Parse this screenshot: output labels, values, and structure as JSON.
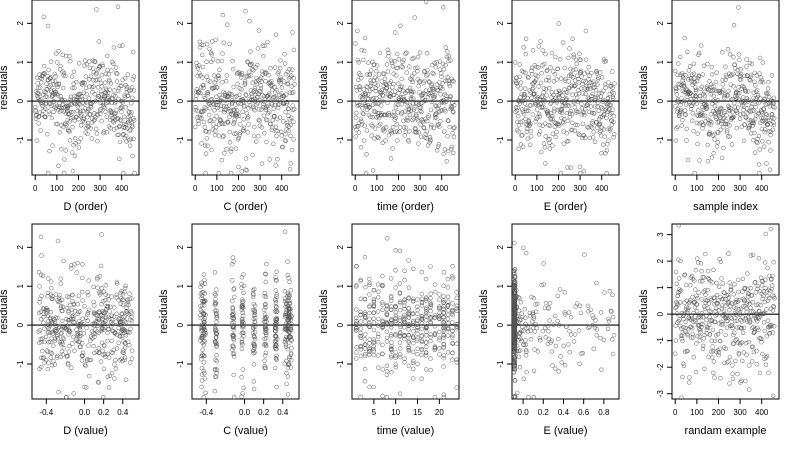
{
  "figure": {
    "rows": 2,
    "cols": 5
  },
  "chart_data": [
    {
      "type": "scatter",
      "title": "",
      "xlabel": "D (order)",
      "ylabel": "residuals",
      "xticks": [
        0,
        100,
        200,
        300,
        400
      ],
      "xtick_labels": [
        "0",
        "100",
        "200",
        "300",
        "400"
      ],
      "yticks": [
        -1,
        0,
        1,
        2
      ],
      "ytick_labels": [
        "-1",
        "0",
        "1",
        "2"
      ],
      "xlim": [
        -15,
        480
      ],
      "ylim": [
        -1.9,
        2.6
      ],
      "hline": 0,
      "series": [
        {
          "name": "",
          "x": [],
          "y": []
        }
      ],
      "marker": "open-circle",
      "point_color": "#555555",
      "gen": {
        "kind": "index",
        "n": 460,
        "seed": 11,
        "wave": 0.25,
        "spread": 0.55
      }
    },
    {
      "type": "scatter",
      "title": "",
      "xlabel": "C (order)",
      "ylabel": "residuals",
      "xticks": [
        0,
        100,
        200,
        300,
        400
      ],
      "xtick_labels": [
        "0",
        "100",
        "200",
        "300",
        "400"
      ],
      "yticks": [
        -1,
        0,
        1,
        2
      ],
      "ytick_labels": [
        "-1",
        "0",
        "1",
        "2"
      ],
      "xlim": [
        -15,
        480
      ],
      "ylim": [
        -1.9,
        2.6
      ],
      "hline": 0,
      "series": [
        {
          "name": "",
          "x": [],
          "y": []
        }
      ],
      "marker": "open-circle",
      "point_color": "#555555",
      "gen": {
        "kind": "index",
        "n": 460,
        "seed": 23,
        "wave": 0.1,
        "spread": 0.6
      }
    },
    {
      "type": "scatter",
      "title": "",
      "xlabel": "time (order)",
      "ylabel": "residuals",
      "xticks": [
        0,
        100,
        200,
        300,
        400
      ],
      "xtick_labels": [
        "0",
        "100",
        "200",
        "300",
        "400"
      ],
      "yticks": [
        -1,
        0,
        1,
        2
      ],
      "ytick_labels": [
        "-1",
        "0",
        "1",
        "2"
      ],
      "xlim": [
        -15,
        480
      ],
      "ylim": [
        -1.9,
        2.6
      ],
      "hline": 0,
      "series": [
        {
          "name": "",
          "x": [],
          "y": []
        }
      ],
      "marker": "open-circle",
      "point_color": "#555555",
      "gen": {
        "kind": "index",
        "n": 460,
        "seed": 37,
        "wave": 0.05,
        "spread": 0.6
      }
    },
    {
      "type": "scatter",
      "title": "",
      "xlabel": "E (order)",
      "ylabel": "residuals",
      "xticks": [
        0,
        100,
        200,
        300,
        400
      ],
      "xtick_labels": [
        "0",
        "100",
        "200",
        "300",
        "400"
      ],
      "yticks": [
        -1,
        0,
        1,
        2
      ],
      "ytick_labels": [
        "-1",
        "0",
        "1",
        "2"
      ],
      "xlim": [
        -15,
        480
      ],
      "ylim": [
        -1.9,
        2.6
      ],
      "hline": 0,
      "series": [
        {
          "name": "",
          "x": [],
          "y": []
        }
      ],
      "marker": "open-circle",
      "point_color": "#555555",
      "gen": {
        "kind": "index",
        "n": 460,
        "seed": 41,
        "wave": 0.15,
        "spread": 0.6
      }
    },
    {
      "type": "scatter",
      "title": "",
      "xlabel": "sample index",
      "ylabel": "residuals",
      "xticks": [
        0,
        100,
        200,
        300,
        400
      ],
      "xtick_labels": [
        "0",
        "100",
        "200",
        "300",
        "400"
      ],
      "yticks": [
        -1,
        0,
        1,
        2
      ],
      "ytick_labels": [
        "-1",
        "0",
        "1",
        "2"
      ],
      "xlim": [
        -15,
        480
      ],
      "ylim": [
        -1.9,
        2.6
      ],
      "hline": 0,
      "series": [
        {
          "name": "",
          "x": [],
          "y": []
        }
      ],
      "marker": "open-circle",
      "point_color": "#555555",
      "gen": {
        "kind": "index",
        "n": 460,
        "seed": 53,
        "wave": 0.2,
        "spread": 0.55
      }
    },
    {
      "type": "scatter",
      "title": "",
      "xlabel": "D (value)",
      "ylabel": "residuals",
      "xticks": [
        -0.4,
        0.0,
        0.2,
        0.4
      ],
      "xtick_labels": [
        "-0.4",
        "0.0",
        "0.2",
        "0.4"
      ],
      "yticks": [
        -1,
        0,
        1,
        2
      ],
      "ytick_labels": [
        "-1",
        "0",
        "1",
        "2"
      ],
      "xlim": [
        -0.55,
        0.57
      ],
      "ylim": [
        -1.9,
        2.6
      ],
      "hline": 0,
      "series": [
        {
          "name": "",
          "x": [],
          "y": []
        }
      ],
      "marker": "open-circle",
      "point_color": "#555555",
      "gen": {
        "kind": "uniform",
        "n": 460,
        "seed": 61,
        "xmin": -0.48,
        "xmax": 0.5,
        "spread": 0.6
      }
    },
    {
      "type": "scatter",
      "title": "",
      "xlabel": "C (value)",
      "ylabel": "residuals",
      "xticks": [
        -0.4,
        0.0,
        0.2,
        0.4
      ],
      "xtick_labels": [
        "-0.4",
        "0.0",
        "0.2",
        "0.4"
      ],
      "yticks": [
        -1,
        0,
        1,
        2
      ],
      "ytick_labels": [
        "-1",
        "0",
        "1",
        "2"
      ],
      "xlim": [
        -0.55,
        0.57
      ],
      "ylim": [
        -1.9,
        2.6
      ],
      "hline": 0,
      "series": [
        {
          "name": "",
          "x": [],
          "y": []
        }
      ],
      "marker": "open-circle",
      "point_color": "#555555",
      "gen": {
        "kind": "columns",
        "n": 460,
        "seed": 71,
        "xs": [
          -0.45,
          -0.42,
          -0.3,
          -0.12,
          -0.02,
          0.1,
          0.22,
          0.33,
          0.43,
          0.46,
          0.48
        ],
        "jitter": 0.012,
        "spread": 0.6
      }
    },
    {
      "type": "scatter",
      "title": "",
      "xlabel": "time (value)",
      "ylabel": "residuals",
      "xticks": [
        5,
        10,
        15,
        20
      ],
      "xtick_labels": [
        "5",
        "10",
        "15",
        "20"
      ],
      "yticks": [
        -1,
        0,
        1,
        2
      ],
      "ytick_labels": [
        "-1",
        "0",
        "1",
        "2"
      ],
      "xlim": [
        0,
        24.5
      ],
      "ylim": [
        -1.9,
        2.6
      ],
      "hline": 0,
      "series": [
        {
          "name": "",
          "x": [],
          "y": []
        }
      ],
      "marker": "open-circle",
      "point_color": "#555555",
      "gen": {
        "kind": "columns",
        "n": 460,
        "seed": 83,
        "xs": [
          1,
          2,
          3,
          4,
          5,
          6,
          7,
          8,
          9,
          10,
          11,
          12,
          13,
          14,
          15,
          16,
          17,
          18,
          19,
          20,
          21,
          22,
          23,
          24
        ],
        "jitter": 0.05,
        "spread": 0.6
      }
    },
    {
      "type": "scatter",
      "title": "",
      "xlabel": "E (value)",
      "ylabel": "residuals",
      "xticks": [
        0.0,
        0.2,
        0.4,
        0.6,
        0.8
      ],
      "xtick_labels": [
        "0.0",
        "0.2",
        "0.4",
        "0.6",
        "0.8"
      ],
      "yticks": [
        -1,
        0,
        1,
        2
      ],
      "ytick_labels": [
        "-1",
        "0",
        "1",
        "2"
      ],
      "xlim": [
        -0.11,
        0.95
      ],
      "ylim": [
        -1.9,
        2.6
      ],
      "hline": 0,
      "series": [
        {
          "name": "",
          "x": [],
          "y": []
        }
      ],
      "marker": "open-circle",
      "point_color": "#555555",
      "gen": {
        "kind": "skewed",
        "n": 460,
        "seed": 97,
        "xmin": -0.09,
        "xmax": 0.9,
        "spread": 0.6
      }
    },
    {
      "type": "scatter",
      "title": "",
      "xlabel": "randam example",
      "ylabel": "residuals",
      "xticks": [
        0,
        100,
        200,
        300,
        400
      ],
      "xtick_labels": [
        "0",
        "100",
        "200",
        "300",
        "400"
      ],
      "yticks": [
        -3,
        -2,
        -1,
        0,
        1,
        2,
        3
      ],
      "ytick_labels": [
        "-3",
        "-2",
        "-1",
        "0",
        "1",
        "2",
        "3"
      ],
      "xlim": [
        -15,
        480
      ],
      "ylim": [
        -3.2,
        3.4
      ],
      "hline": 0,
      "series": [
        {
          "name": "",
          "x": [],
          "y": []
        }
      ],
      "marker": "open-circle",
      "point_color": "#555555",
      "gen": {
        "kind": "index",
        "n": 460,
        "seed": 101,
        "wave": 0.0,
        "spread": 1.0
      }
    }
  ]
}
